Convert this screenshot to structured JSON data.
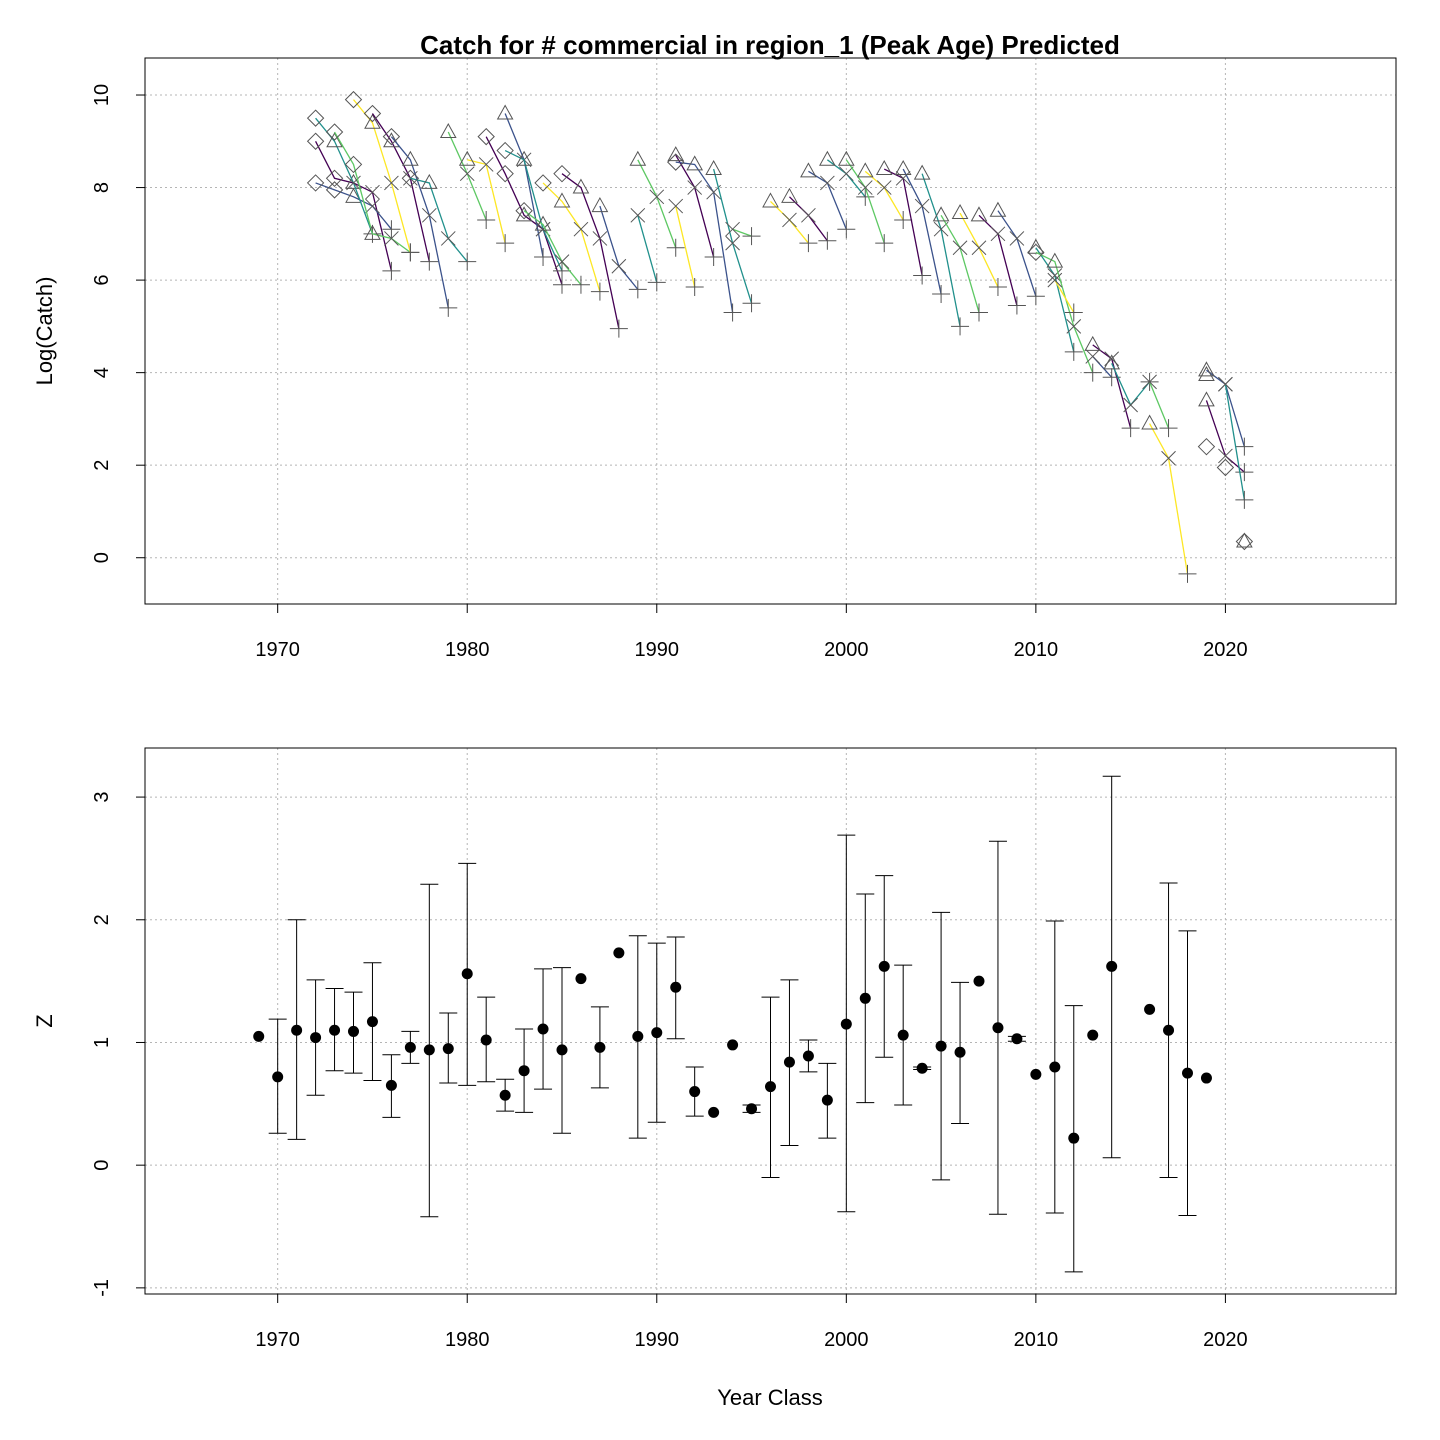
{
  "colors": {
    "palette": [
      "#440154",
      "#3b528b",
      "#21908c",
      "#5dc863",
      "#fde725"
    ],
    "symbol": "#555555",
    "grid": "#b5b5b5"
  },
  "chart_data": [
    {
      "type": "line",
      "title": "Catch for # commercial in region_1 (Peak Age) Predicted",
      "xlabel": "",
      "ylabel": "Log(Catch)",
      "xlim": [
        1963,
        2029
      ],
      "ylim": [
        -1,
        10.8
      ],
      "xticks": [
        1970,
        1980,
        1990,
        2000,
        2010,
        2020
      ],
      "yticks": [
        0,
        2,
        4,
        6,
        8,
        10
      ],
      "grid": true,
      "cohorts": [
        {
          "x": [
            1972,
            1973,
            1974,
            1975,
            1976
          ],
          "y": [
            9.0,
            8.2,
            8.1,
            7.9,
            6.2
          ]
        },
        {
          "x": [
            1972,
            1973,
            1974,
            1975,
            1976
          ],
          "y": [
            8.1,
            7.95,
            7.8,
            7.6,
            7.1
          ]
        },
        {
          "x": [
            1972,
            1973,
            1974,
            1975
          ],
          "y": [
            9.5,
            9.0,
            8.1,
            7.0
          ]
        },
        {
          "x": [
            1973,
            1974,
            1975,
            1976,
            1977
          ],
          "y": [
            9.2,
            8.5,
            7.0,
            6.9,
            6.6
          ]
        },
        {
          "x": [
            1974,
            1975,
            1976,
            1977
          ],
          "y": [
            9.9,
            9.4,
            8.1,
            6.6
          ]
        },
        {
          "x": [
            1975,
            1976,
            1977,
            1978
          ],
          "y": [
            9.6,
            9.0,
            8.2,
            6.4
          ]
        },
        {
          "x": [
            1976,
            1977,
            1978,
            1979
          ],
          "y": [
            9.1,
            8.6,
            7.4,
            5.4
          ]
        },
        {
          "x": [
            1977,
            1978,
            1979,
            1980
          ],
          "y": [
            8.2,
            8.1,
            6.9,
            6.4
          ]
        },
        {
          "x": [
            1979,
            1980,
            1981
          ],
          "y": [
            9.2,
            8.3,
            7.3
          ]
        },
        {
          "x": [
            1980,
            1981,
            1982
          ],
          "y": [
            8.6,
            8.5,
            6.8
          ]
        },
        {
          "x": [
            1981,
            1982,
            1983,
            1984,
            1985
          ],
          "y": [
            9.1,
            8.3,
            7.4,
            7.1,
            5.9
          ]
        },
        {
          "x": [
            1982,
            1983,
            1984
          ],
          "y": [
            9.6,
            8.6,
            6.5
          ]
        },
        {
          "x": [
            1982,
            1983,
            1984,
            1985
          ],
          "y": [
            8.8,
            8.6,
            7.1,
            6.2
          ]
        },
        {
          "x": [
            1983,
            1984,
            1985,
            1986
          ],
          "y": [
            7.5,
            7.2,
            6.4,
            5.9
          ]
        },
        {
          "x": [
            1984,
            1985,
            1986,
            1987
          ],
          "y": [
            8.1,
            7.7,
            7.1,
            5.75
          ]
        },
        {
          "x": [
            1985,
            1986,
            1987,
            1988
          ],
          "y": [
            8.3,
            8.0,
            6.9,
            4.95
          ]
        },
        {
          "x": [
            1987,
            1988,
            1989
          ],
          "y": [
            7.6,
            6.3,
            5.8
          ]
        },
        {
          "x": [
            1989,
            1990
          ],
          "y": [
            7.4,
            5.95
          ]
        },
        {
          "x": [
            1989,
            1990,
            1991
          ],
          "y": [
            8.6,
            7.8,
            6.7
          ]
        },
        {
          "x": [
            1991,
            1992
          ],
          "y": [
            7.6,
            5.85
          ]
        },
        {
          "x": [
            1991,
            1992,
            1993
          ],
          "y": [
            8.7,
            8.0,
            6.5
          ]
        },
        {
          "x": [
            1991,
            1992,
            1993,
            1994
          ],
          "y": [
            8.55,
            8.5,
            7.9,
            5.3
          ]
        },
        {
          "x": [
            1993,
            1994,
            1995
          ],
          "y": [
            8.4,
            6.8,
            5.5
          ]
        },
        {
          "x": [
            1994,
            1995
          ],
          "y": [
            7.1,
            6.95
          ]
        },
        {
          "x": [
            1996,
            1997,
            1998
          ],
          "y": [
            7.7,
            7.3,
            6.8
          ]
        },
        {
          "x": [
            1997,
            1998,
            1999
          ],
          "y": [
            7.8,
            7.4,
            6.85
          ]
        },
        {
          "x": [
            1998,
            1999,
            2000
          ],
          "y": [
            8.35,
            8.1,
            7.1
          ]
        },
        {
          "x": [
            1999,
            2000,
            2001
          ],
          "y": [
            8.6,
            8.3,
            7.8
          ]
        },
        {
          "x": [
            2000,
            2001,
            2002
          ],
          "y": [
            8.6,
            8.0,
            6.8
          ]
        },
        {
          "x": [
            2001,
            2002,
            2003
          ],
          "y": [
            8.35,
            8.0,
            7.3
          ]
        },
        {
          "x": [
            2002,
            2003,
            2004
          ],
          "y": [
            8.4,
            8.2,
            6.1
          ]
        },
        {
          "x": [
            2003,
            2004,
            2005
          ],
          "y": [
            8.4,
            7.6,
            5.7
          ]
        },
        {
          "x": [
            2004,
            2005,
            2006
          ],
          "y": [
            8.3,
            7.1,
            5.0
          ]
        },
        {
          "x": [
            2005,
            2006,
            2007
          ],
          "y": [
            7.4,
            6.7,
            5.3
          ]
        },
        {
          "x": [
            2006,
            2007,
            2008
          ],
          "y": [
            7.45,
            6.7,
            5.85
          ]
        },
        {
          "x": [
            2007,
            2008,
            2009
          ],
          "y": [
            7.4,
            7.0,
            5.45
          ]
        },
        {
          "x": [
            2008,
            2009,
            2010
          ],
          "y": [
            7.5,
            6.9,
            5.65
          ]
        },
        {
          "x": [
            2010,
            2011,
            2012
          ],
          "y": [
            6.7,
            6.1,
            4.45
          ]
        },
        {
          "x": [
            2010,
            2011,
            2012,
            2013
          ],
          "y": [
            6.6,
            6.4,
            5.0,
            4.0
          ]
        },
        {
          "x": [
            2011,
            2012
          ],
          "y": [
            6.0,
            5.3
          ]
        },
        {
          "x": [
            2013,
            2014,
            2015
          ],
          "y": [
            4.6,
            4.3,
            2.8
          ]
        },
        {
          "x": [
            2013,
            2014
          ],
          "y": [
            4.35,
            3.9
          ]
        },
        {
          "x": [
            2014,
            2015,
            2016
          ],
          "y": [
            4.2,
            3.3,
            3.8
          ]
        },
        {
          "x": [
            2016,
            2017
          ],
          "y": [
            3.8,
            2.8
          ]
        },
        {
          "x": [
            2016,
            2017,
            2018
          ],
          "y": [
            2.9,
            2.15,
            -0.35
          ]
        },
        {
          "x": [
            2019,
            2020,
            2021
          ],
          "y": [
            3.4,
            2.2,
            1.85
          ]
        },
        {
          "x": [
            2019,
            2020,
            2021
          ],
          "y": [
            4.05,
            3.75,
            2.4
          ]
        },
        {
          "x": [
            2020,
            2021
          ],
          "y": [
            3.75,
            1.25
          ]
        }
      ],
      "isolated": [
        {
          "x": 2019,
          "y": 2.4
        },
        {
          "x": 2019,
          "y": 3.95
        },
        {
          "x": 2020,
          "y": 1.95
        },
        {
          "x": 2021,
          "y": 0.35
        }
      ]
    },
    {
      "type": "scatter",
      "title": "",
      "xlabel": "Year Class",
      "ylabel": "Z",
      "xlim": [
        1963,
        2029
      ],
      "ylim": [
        -1.05,
        3.4
      ],
      "xticks": [
        1970,
        1980,
        1990,
        2000,
        2010,
        2020
      ],
      "yticks": [
        -1,
        0,
        1,
        2,
        3
      ],
      "grid": true,
      "points": [
        {
          "x": 1969,
          "y": 1.05
        },
        {
          "x": 1970,
          "y": 0.72,
          "lo": 0.26,
          "hi": 1.19
        },
        {
          "x": 1971,
          "y": 1.1,
          "lo": 0.21,
          "hi": 2.0
        },
        {
          "x": 1972,
          "y": 1.04,
          "lo": 0.57,
          "hi": 1.51
        },
        {
          "x": 1973,
          "y": 1.1,
          "lo": 0.77,
          "hi": 1.44
        },
        {
          "x": 1974,
          "y": 1.09,
          "lo": 0.75,
          "hi": 1.41
        },
        {
          "x": 1975,
          "y": 1.17,
          "lo": 0.69,
          "hi": 1.65
        },
        {
          "x": 1976,
          "y": 0.65,
          "lo": 0.39,
          "hi": 0.9
        },
        {
          "x": 1977,
          "y": 0.96,
          "lo": 0.83,
          "hi": 1.09
        },
        {
          "x": 1978,
          "y": 0.94,
          "lo": -0.42,
          "hi": 2.29
        },
        {
          "x": 1979,
          "y": 0.95,
          "lo": 0.67,
          "hi": 1.24
        },
        {
          "x": 1980,
          "y": 1.56,
          "lo": 0.65,
          "hi": 2.46
        },
        {
          "x": 1981,
          "y": 1.02,
          "lo": 0.68,
          "hi": 1.37
        },
        {
          "x": 1982,
          "y": 0.57,
          "lo": 0.44,
          "hi": 0.7
        },
        {
          "x": 1983,
          "y": 0.77,
          "lo": 0.43,
          "hi": 1.11
        },
        {
          "x": 1984,
          "y": 1.11,
          "lo": 0.62,
          "hi": 1.6
        },
        {
          "x": 1985,
          "y": 0.94,
          "lo": 0.26,
          "hi": 1.61
        },
        {
          "x": 1986,
          "y": 1.52
        },
        {
          "x": 1987,
          "y": 0.96,
          "lo": 0.63,
          "hi": 1.29
        },
        {
          "x": 1988,
          "y": 1.73
        },
        {
          "x": 1989,
          "y": 1.05,
          "lo": 0.22,
          "hi": 1.87
        },
        {
          "x": 1990,
          "y": 1.08,
          "lo": 0.35,
          "hi": 1.81
        },
        {
          "x": 1991,
          "y": 1.45,
          "lo": 1.03,
          "hi": 1.86
        },
        {
          "x": 1992,
          "y": 0.6,
          "lo": 0.4,
          "hi": 0.8
        },
        {
          "x": 1993,
          "y": 0.43
        },
        {
          "x": 1994,
          "y": 0.98
        },
        {
          "x": 1995,
          "y": 0.46,
          "lo": 0.43,
          "hi": 0.49
        },
        {
          "x": 1996,
          "y": 0.64,
          "lo": -0.1,
          "hi": 1.37
        },
        {
          "x": 1997,
          "y": 0.84,
          "lo": 0.16,
          "hi": 1.51
        },
        {
          "x": 1998,
          "y": 0.89,
          "lo": 0.76,
          "hi": 1.02
        },
        {
          "x": 1999,
          "y": 0.53,
          "lo": 0.22,
          "hi": 0.83
        },
        {
          "x": 2000,
          "y": 1.15,
          "lo": -0.38,
          "hi": 2.69
        },
        {
          "x": 2001,
          "y": 1.36,
          "lo": 0.51,
          "hi": 2.21
        },
        {
          "x": 2002,
          "y": 1.62,
          "lo": 0.88,
          "hi": 2.36
        },
        {
          "x": 2003,
          "y": 1.06,
          "lo": 0.49,
          "hi": 1.63
        },
        {
          "x": 2004,
          "y": 0.79,
          "lo": 0.78,
          "hi": 0.8
        },
        {
          "x": 2005,
          "y": 0.97,
          "lo": -0.12,
          "hi": 2.06
        },
        {
          "x": 2006,
          "y": 0.92,
          "lo": 0.34,
          "hi": 1.49
        },
        {
          "x": 2007,
          "y": 1.5
        },
        {
          "x": 2008,
          "y": 1.12,
          "lo": -0.4,
          "hi": 2.64
        },
        {
          "x": 2009,
          "y": 1.03,
          "lo": 1.01,
          "hi": 1.05
        },
        {
          "x": 2010,
          "y": 0.74
        },
        {
          "x": 2011,
          "y": 0.8,
          "lo": -0.39,
          "hi": 1.99
        },
        {
          "x": 2012,
          "y": 0.22,
          "lo": -0.87,
          "hi": 1.3
        },
        {
          "x": 2013,
          "y": 1.06
        },
        {
          "x": 2014,
          "y": 1.62,
          "lo": 0.06,
          "hi": 3.17
        },
        {
          "x": 2016,
          "y": 1.27
        },
        {
          "x": 2017,
          "y": 1.1,
          "lo": -0.1,
          "hi": 2.3
        },
        {
          "x": 2018,
          "y": 0.75,
          "lo": -0.41,
          "hi": 1.91
        },
        {
          "x": 2019,
          "y": 0.71
        }
      ]
    }
  ]
}
